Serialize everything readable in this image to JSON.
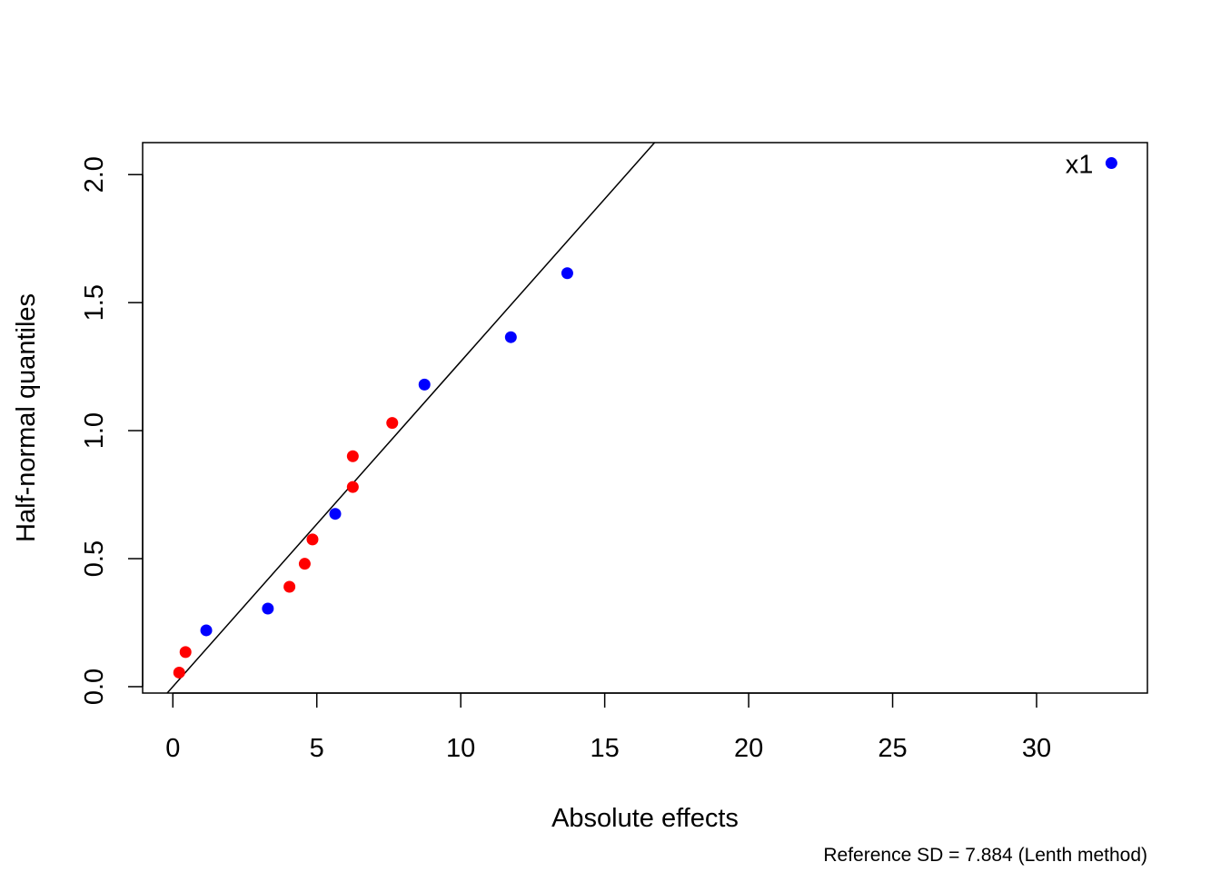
{
  "chart_data": {
    "type": "scatter",
    "title": "",
    "xlabel": "Absolute effects",
    "ylabel": "Half-normal quantiles",
    "footnote": "Reference SD = 7.884 (Lenth method)",
    "xlim": [
      -1.05,
      33.85
    ],
    "ylim": [
      -0.025,
      2.125
    ],
    "x_ticks": [
      0,
      5,
      10,
      15,
      20,
      25,
      30
    ],
    "x_tick_labels": [
      "0",
      "5",
      "10",
      "15",
      "20",
      "25",
      "30"
    ],
    "y_ticks": [
      0.0,
      0.5,
      1.0,
      1.5,
      2.0
    ],
    "y_tick_labels": [
      "0.0",
      "0.5",
      "1.0",
      "1.5",
      "2.0"
    ],
    "grid": false,
    "colors": {
      "blue": "#0000FF",
      "red": "#FF0000",
      "line": "#000000"
    },
    "reference_line": {
      "intercept": 0.0,
      "slope": 0.127
    },
    "points": [
      {
        "x": 0.22,
        "y": 0.055,
        "color": "red"
      },
      {
        "x": 0.44,
        "y": 0.135,
        "color": "red"
      },
      {
        "x": 1.16,
        "y": 0.22,
        "color": "blue"
      },
      {
        "x": 3.3,
        "y": 0.305,
        "color": "blue"
      },
      {
        "x": 4.05,
        "y": 0.39,
        "color": "red"
      },
      {
        "x": 4.58,
        "y": 0.48,
        "color": "red"
      },
      {
        "x": 4.85,
        "y": 0.575,
        "color": "red"
      },
      {
        "x": 5.64,
        "y": 0.675,
        "color": "blue"
      },
      {
        "x": 6.25,
        "y": 0.78,
        "color": "red"
      },
      {
        "x": 6.25,
        "y": 0.9,
        "color": "red"
      },
      {
        "x": 7.62,
        "y": 1.03,
        "color": "red"
      },
      {
        "x": 8.74,
        "y": 1.18,
        "color": "blue"
      },
      {
        "x": 11.74,
        "y": 1.365,
        "color": "blue"
      },
      {
        "x": 13.7,
        "y": 1.615,
        "color": "blue"
      },
      {
        "x": 32.6,
        "y": 2.045,
        "color": "blue",
        "label": "x1"
      }
    ]
  }
}
